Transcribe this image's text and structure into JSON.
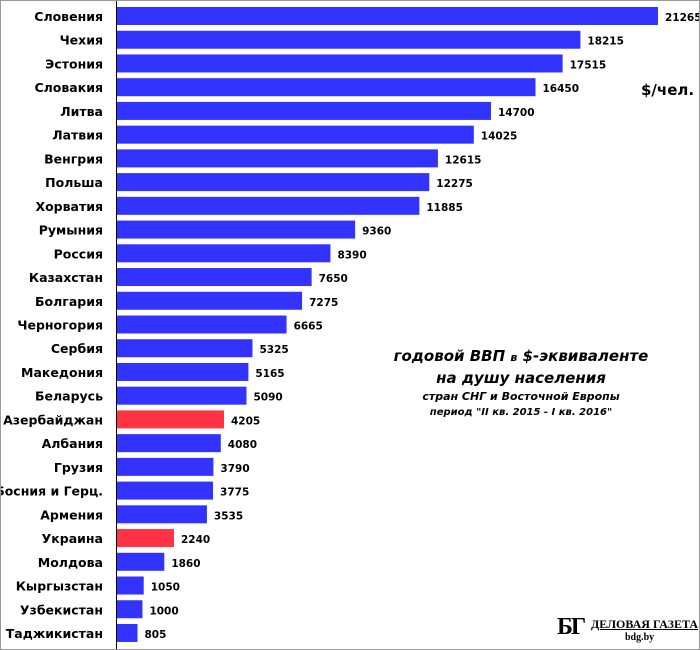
{
  "chart_data": {
    "type": "bar",
    "orientation": "horizontal",
    "unit_label": "$/чел.",
    "title": "годовой ВВП в $-эквиваленте на душу населения",
    "title_parts": [
      "годовой ВВП ",
      "в",
      " $-эквиваленте"
    ],
    "title_line2": "на душу населения",
    "subtitle": "стран СНГ и Восточной Европы",
    "period": "период  \"II кв.  2015 - I кв.  2016\"",
    "categories": [
      "Словения",
      "Чехия",
      "Эстония",
      "Словакия",
      "Литва",
      "Латвия",
      "Венгрия",
      "Польша",
      "Хорватия",
      "Румыния",
      "Россия",
      "Казахстан",
      "Болгария",
      "Черногория",
      "Сербия",
      "Македония",
      "Беларусь",
      "Азербайджан",
      "Албания",
      "Грузия",
      "Босния и Герц.",
      "Армения",
      "Украина",
      "Молдова",
      "Кыргызстан",
      "Узбекистан",
      "Таджикистан"
    ],
    "values": [
      21265,
      18215,
      17515,
      16450,
      14700,
      14025,
      12615,
      12275,
      11885,
      9360,
      8390,
      7650,
      7275,
      6665,
      5325,
      5165,
      5090,
      4205,
      4080,
      3790,
      3775,
      3535,
      2240,
      1860,
      1050,
      1000,
      805
    ],
    "highlighted": [
      "Азербайджан",
      "Украина"
    ],
    "colors": {
      "default": "#3333ff",
      "highlight": "#ff3344"
    },
    "xlim": [
      0,
      21265
    ],
    "grid": false,
    "data_labels": true
  },
  "logo": {
    "mark": "БГ",
    "name": "ДЕЛОВАЯ ГАЗЕТА",
    "site": "bdg.by"
  }
}
